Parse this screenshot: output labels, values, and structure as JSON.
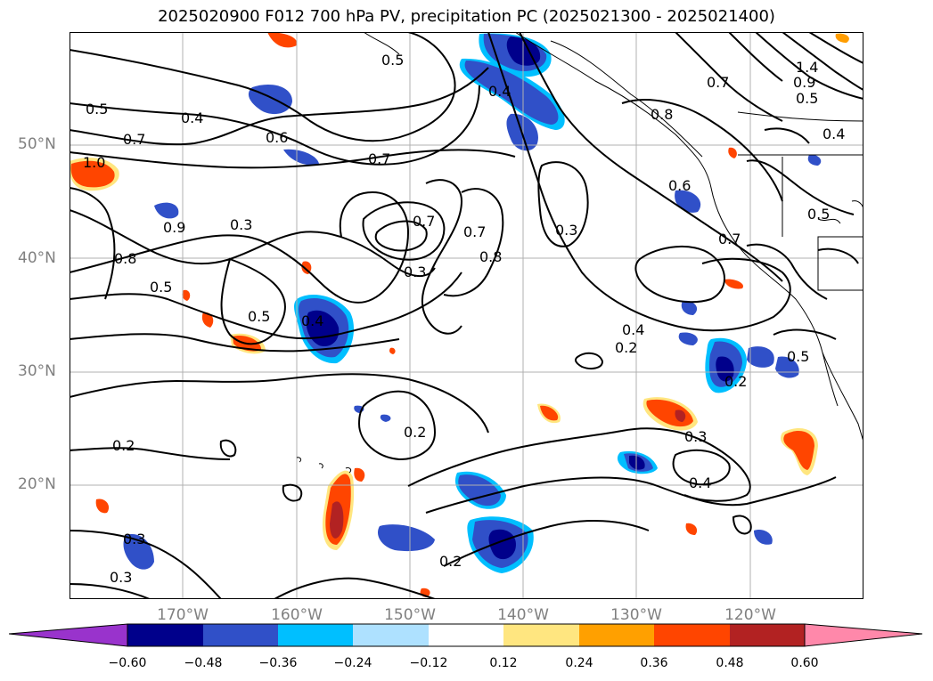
{
  "title": "2025020900 F012 700 hPa PV, precipitation PC (2025021300 - 2025021400)",
  "map": {
    "lat_labels": [
      "50°N",
      "40°N",
      "30°N",
      "20°N"
    ],
    "lon_labels": [
      "170°W",
      "160°W",
      "150°W",
      "140°W",
      "130°W",
      "120°W"
    ],
    "contour_labels": [
      "0.5",
      "0.4",
      "0.6",
      "0.7",
      "0.5",
      "1.0",
      "0.7",
      "0.9",
      "0.3",
      "0.8",
      "0.5",
      "0.5",
      "0.4",
      "0.4",
      "0.3",
      "0.7",
      "0.7",
      "0.8",
      "0.3",
      "0.6",
      "0.7",
      "0.5",
      "0.4",
      "0.5",
      "0.2",
      "0.2",
      "0.3",
      "0.4",
      "0.3",
      "0.2",
      "0.2",
      "0.3",
      "0.2",
      "1.4",
      "0.9",
      "0.5",
      "0.7",
      "0.4",
      "0.8"
    ],
    "colors": {
      "neg_dark": "#00008b",
      "neg_mid": "#3050c8",
      "neg_light": "#00bfff",
      "pos_light": "#ffe680",
      "pos_mid": "#ff9d00",
      "pos_high": "#ff4500",
      "pos_dark": "#b22222"
    }
  },
  "colorbar": {
    "ticks": [
      "−0.60",
      "−0.48",
      "−0.36",
      "−0.24",
      "−0.12",
      "0.12",
      "0.24",
      "0.36",
      "0.48",
      "0.60"
    ],
    "colors": [
      "#9933cc",
      "#00008b",
      "#3050c8",
      "#2e5fd8",
      "#00bfff",
      "#aee1ff",
      "#ffffff",
      "#ffe680",
      "#ffa000",
      "#ff4500",
      "#b22222",
      "#ff88aa"
    ]
  }
}
